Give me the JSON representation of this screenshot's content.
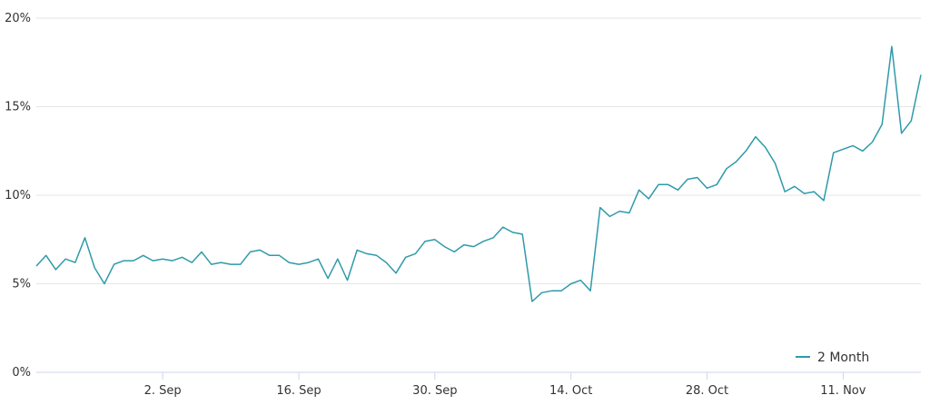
{
  "chart_data": {
    "type": "line",
    "title": "",
    "xlabel": "",
    "ylabel": "",
    "ylim": [
      0,
      20
    ],
    "y_ticks": [
      "0%",
      "5%",
      "10%",
      "15%",
      "20%"
    ],
    "y_tick_values": [
      0,
      5,
      10,
      15,
      20
    ],
    "x_ticks": [
      "2. Sep",
      "16. Sep",
      "30. Sep",
      "14. Oct",
      "28. Oct",
      "11. Nov"
    ],
    "x_tick_values": [
      "2024-09-02",
      "2024-09-16",
      "2024-09-30",
      "2024-10-14",
      "2024-10-28",
      "2024-11-11"
    ],
    "xlim": [
      "2024-08-20",
      "2024-11-19"
    ],
    "grid": true,
    "legend_position": "bottom-right",
    "colors": {
      "series": "#2f9aaa",
      "grid": "#e6e6e6",
      "axis": "#ccd6eb"
    },
    "series": [
      {
        "name": "2 Month",
        "color": "#2f9aaa",
        "x": [
          "2024-08-20",
          "2024-08-21",
          "2024-08-22",
          "2024-08-23",
          "2024-08-24",
          "2024-08-25",
          "2024-08-26",
          "2024-08-27",
          "2024-08-28",
          "2024-08-29",
          "2024-08-30",
          "2024-08-31",
          "2024-09-01",
          "2024-09-02",
          "2024-09-03",
          "2024-09-04",
          "2024-09-05",
          "2024-09-06",
          "2024-09-07",
          "2024-09-08",
          "2024-09-09",
          "2024-09-10",
          "2024-09-11",
          "2024-09-12",
          "2024-09-13",
          "2024-09-14",
          "2024-09-15",
          "2024-09-16",
          "2024-09-17",
          "2024-09-18",
          "2024-09-19",
          "2024-09-20",
          "2024-09-21",
          "2024-09-22",
          "2024-09-23",
          "2024-09-24",
          "2024-09-25",
          "2024-09-26",
          "2024-09-27",
          "2024-09-28",
          "2024-09-29",
          "2024-09-30",
          "2024-10-01",
          "2024-10-02",
          "2024-10-03",
          "2024-10-04",
          "2024-10-05",
          "2024-10-06",
          "2024-10-07",
          "2024-10-08",
          "2024-10-09",
          "2024-10-10",
          "2024-10-11",
          "2024-10-12",
          "2024-10-13",
          "2024-10-14",
          "2024-10-15",
          "2024-10-16",
          "2024-10-17",
          "2024-10-18",
          "2024-10-19",
          "2024-10-20",
          "2024-10-21",
          "2024-10-22",
          "2024-10-23",
          "2024-10-24",
          "2024-10-25",
          "2024-10-26",
          "2024-10-27",
          "2024-10-28",
          "2024-10-29",
          "2024-10-30",
          "2024-10-31",
          "2024-11-01",
          "2024-11-02",
          "2024-11-03",
          "2024-11-04",
          "2024-11-05",
          "2024-11-06",
          "2024-11-07",
          "2024-11-08",
          "2024-11-09",
          "2024-11-10",
          "2024-11-11",
          "2024-11-12",
          "2024-11-13",
          "2024-11-14",
          "2024-11-15",
          "2024-11-16",
          "2024-11-17",
          "2024-11-18",
          "2024-11-19"
        ],
        "values": [
          6.0,
          6.6,
          5.8,
          6.4,
          6.2,
          7.6,
          5.9,
          5.0,
          6.1,
          6.3,
          6.3,
          6.6,
          6.3,
          6.4,
          6.3,
          6.5,
          6.2,
          6.8,
          6.1,
          6.2,
          6.1,
          6.1,
          6.8,
          6.9,
          6.6,
          6.6,
          6.2,
          6.1,
          6.2,
          6.4,
          5.3,
          6.4,
          5.2,
          6.9,
          6.7,
          6.6,
          6.2,
          5.6,
          6.5,
          6.7,
          7.4,
          7.5,
          7.1,
          6.8,
          7.2,
          7.1,
          7.4,
          7.6,
          8.2,
          7.9,
          7.8,
          4.0,
          4.5,
          4.6,
          4.6,
          5.0,
          5.2,
          4.6,
          9.3,
          8.8,
          9.1,
          9.0,
          10.3,
          9.8,
          10.6,
          10.6,
          10.3,
          10.9,
          11.0,
          10.4,
          10.6,
          11.5,
          11.9,
          12.5,
          13.3,
          12.7,
          11.8,
          10.2,
          10.5,
          10.1,
          10.2,
          9.7,
          12.4,
          12.6,
          12.8,
          12.5,
          13.0,
          14.0,
          18.4,
          13.5,
          14.2,
          16.8
        ]
      }
    ]
  }
}
